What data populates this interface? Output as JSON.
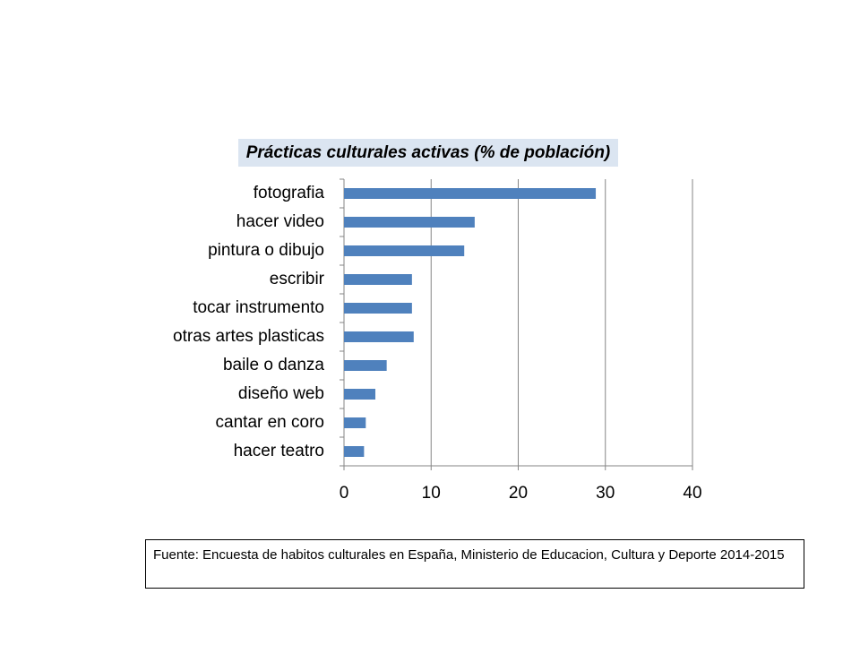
{
  "chart_data": {
    "type": "bar",
    "orientation": "horizontal",
    "title": "Prácticas culturales activas (% de población)",
    "categories": [
      "fotografia",
      "hacer video",
      "pintura o dibujo",
      "escribir",
      "tocar instrumento",
      "otras artes plasticas",
      "baile o danza",
      "diseño web",
      "cantar en coro",
      "hacer teatro"
    ],
    "values": [
      28.9,
      15.0,
      13.8,
      7.8,
      7.8,
      8.0,
      4.9,
      3.6,
      2.5,
      2.3
    ],
    "color": "#4f81bd",
    "xlim": [
      0,
      40
    ],
    "xticks": [
      0,
      10,
      20,
      30,
      40
    ],
    "grid": true,
    "source": "Fuente: Encuesta de habitos culturales en España, Ministerio de Educacion, Cultura y Deporte 2014-2015"
  }
}
